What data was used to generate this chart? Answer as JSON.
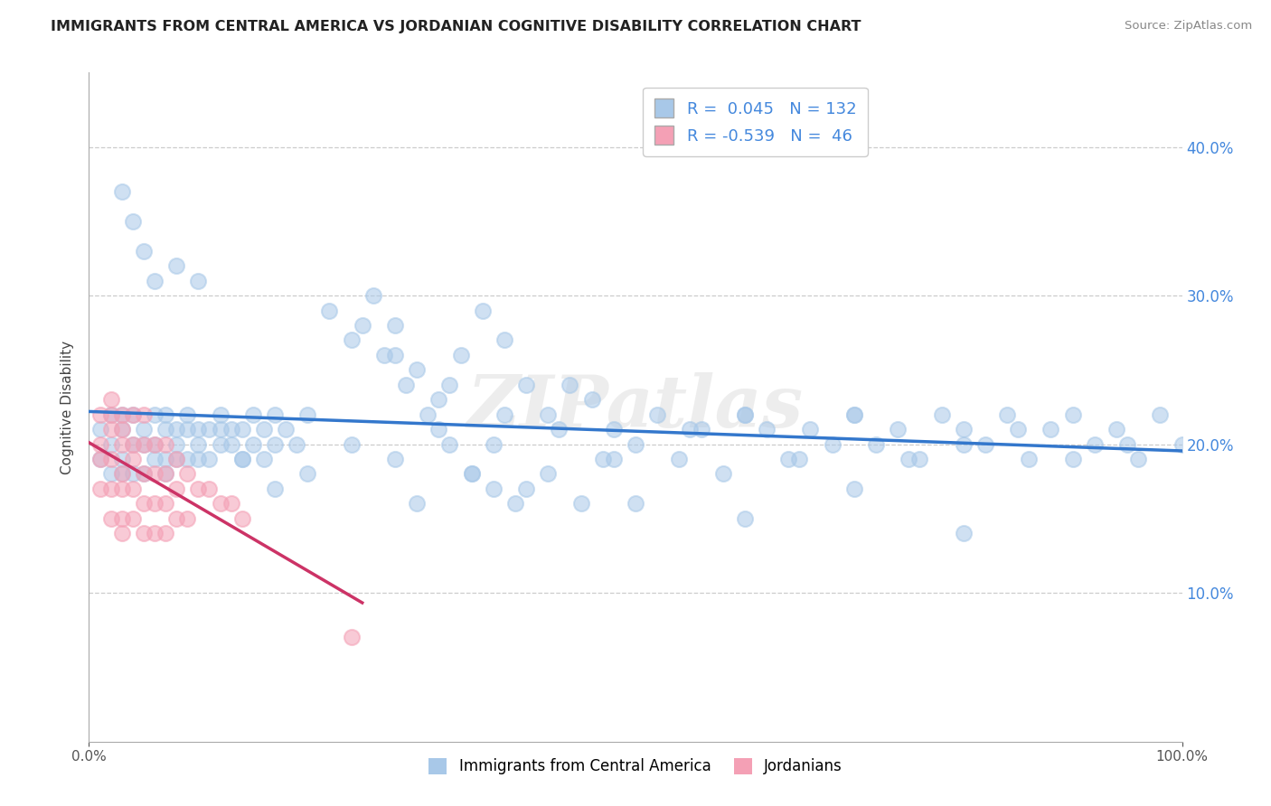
{
  "title": "IMMIGRANTS FROM CENTRAL AMERICA VS JORDANIAN COGNITIVE DISABILITY CORRELATION CHART",
  "source": "Source: ZipAtlas.com",
  "ylabel": "Cognitive Disability",
  "R_blue": 0.045,
  "N_blue": 132,
  "R_pink": -0.539,
  "N_pink": 46,
  "legend_label_blue": "Immigrants from Central America",
  "legend_label_pink": "Jordanians",
  "blue_color": "#a8c8e8",
  "pink_color": "#f4a0b5",
  "blue_line_color": "#3377cc",
  "pink_line_color": "#cc3366",
  "watermark": "ZIPatlas",
  "background_color": "#ffffff",
  "xlim": [
    0,
    1.0
  ],
  "ylim": [
    0,
    0.45
  ],
  "yticks": [
    0.1,
    0.2,
    0.3,
    0.4
  ],
  "right_ytick_labels": [
    "10.0%",
    "20.0%",
    "30.0%",
    "40.0%"
  ],
  "xticks": [
    0.0,
    1.0
  ],
  "xtick_labels": [
    "0.0%",
    "100.0%"
  ],
  "blue_x": [
    0.01,
    0.01,
    0.02,
    0.02,
    0.02,
    0.03,
    0.03,
    0.03,
    0.03,
    0.04,
    0.04,
    0.04,
    0.05,
    0.05,
    0.05,
    0.06,
    0.06,
    0.06,
    0.07,
    0.07,
    0.07,
    0.07,
    0.08,
    0.08,
    0.08,
    0.09,
    0.09,
    0.09,
    0.1,
    0.1,
    0.1,
    0.11,
    0.11,
    0.12,
    0.12,
    0.13,
    0.13,
    0.14,
    0.14,
    0.15,
    0.15,
    0.16,
    0.16,
    0.17,
    0.17,
    0.18,
    0.19,
    0.2,
    0.22,
    0.24,
    0.26,
    0.28,
    0.3,
    0.32,
    0.34,
    0.36,
    0.38,
    0.4,
    0.42,
    0.44,
    0.46,
    0.48,
    0.5,
    0.52,
    0.54,
    0.56,
    0.58,
    0.6,
    0.62,
    0.64,
    0.66,
    0.68,
    0.7,
    0.72,
    0.74,
    0.76,
    0.78,
    0.8,
    0.82,
    0.84,
    0.86,
    0.88,
    0.9,
    0.92,
    0.94,
    0.96,
    0.98,
    1.0,
    0.03,
    0.04,
    0.05,
    0.06,
    0.08,
    0.1,
    0.12,
    0.14,
    0.17,
    0.2,
    0.24,
    0.28,
    0.32,
    0.37,
    0.42,
    0.47,
    0.3,
    0.35,
    0.4,
    0.45,
    0.28,
    0.33,
    0.38,
    0.43,
    0.48,
    0.55,
    0.6,
    0.65,
    0.7,
    0.75,
    0.8,
    0.85,
    0.9,
    0.95,
    0.5,
    0.6,
    0.7,
    0.8,
    0.25,
    0.27,
    0.29,
    0.31,
    0.33,
    0.35,
    0.37,
    0.39
  ],
  "blue_y": [
    0.21,
    0.19,
    0.22,
    0.2,
    0.18,
    0.22,
    0.21,
    0.19,
    0.18,
    0.22,
    0.2,
    0.18,
    0.21,
    0.2,
    0.18,
    0.22,
    0.2,
    0.19,
    0.22,
    0.21,
    0.19,
    0.18,
    0.21,
    0.2,
    0.19,
    0.22,
    0.21,
    0.19,
    0.21,
    0.2,
    0.19,
    0.21,
    0.19,
    0.21,
    0.2,
    0.21,
    0.2,
    0.21,
    0.19,
    0.22,
    0.2,
    0.21,
    0.19,
    0.22,
    0.2,
    0.21,
    0.2,
    0.22,
    0.29,
    0.27,
    0.3,
    0.28,
    0.25,
    0.23,
    0.26,
    0.29,
    0.27,
    0.24,
    0.22,
    0.24,
    0.23,
    0.21,
    0.2,
    0.22,
    0.19,
    0.21,
    0.18,
    0.22,
    0.21,
    0.19,
    0.21,
    0.2,
    0.22,
    0.2,
    0.21,
    0.19,
    0.22,
    0.21,
    0.2,
    0.22,
    0.19,
    0.21,
    0.22,
    0.2,
    0.21,
    0.19,
    0.22,
    0.2,
    0.37,
    0.35,
    0.33,
    0.31,
    0.32,
    0.31,
    0.22,
    0.19,
    0.17,
    0.18,
    0.2,
    0.19,
    0.21,
    0.2,
    0.18,
    0.19,
    0.16,
    0.18,
    0.17,
    0.16,
    0.26,
    0.24,
    0.22,
    0.21,
    0.19,
    0.21,
    0.22,
    0.19,
    0.22,
    0.19,
    0.2,
    0.21,
    0.19,
    0.2,
    0.16,
    0.15,
    0.17,
    0.14,
    0.28,
    0.26,
    0.24,
    0.22,
    0.2,
    0.18,
    0.17,
    0.16
  ],
  "pink_x": [
    0.01,
    0.01,
    0.01,
    0.01,
    0.02,
    0.02,
    0.02,
    0.02,
    0.02,
    0.02,
    0.03,
    0.03,
    0.03,
    0.03,
    0.03,
    0.03,
    0.03,
    0.04,
    0.04,
    0.04,
    0.04,
    0.04,
    0.05,
    0.05,
    0.05,
    0.05,
    0.05,
    0.06,
    0.06,
    0.06,
    0.06,
    0.07,
    0.07,
    0.07,
    0.07,
    0.08,
    0.08,
    0.08,
    0.09,
    0.09,
    0.1,
    0.11,
    0.12,
    0.13,
    0.14,
    0.24
  ],
  "pink_y": [
    0.22,
    0.2,
    0.19,
    0.17,
    0.23,
    0.22,
    0.21,
    0.19,
    0.17,
    0.15,
    0.22,
    0.21,
    0.2,
    0.18,
    0.17,
    0.15,
    0.14,
    0.22,
    0.2,
    0.19,
    0.17,
    0.15,
    0.22,
    0.2,
    0.18,
    0.16,
    0.14,
    0.2,
    0.18,
    0.16,
    0.14,
    0.2,
    0.18,
    0.16,
    0.14,
    0.19,
    0.17,
    0.15,
    0.18,
    0.15,
    0.17,
    0.17,
    0.16,
    0.16,
    0.15,
    0.07
  ]
}
